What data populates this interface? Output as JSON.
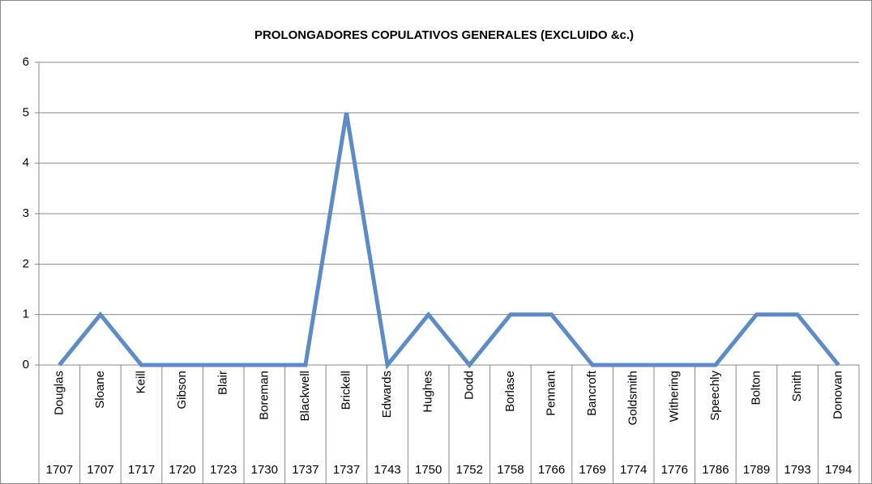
{
  "chart_data": {
    "type": "line",
    "title": "PROLONGADORES COPULATIVOS GENERALES (EXCLUIDO &c.)",
    "categories": [
      "Douglas",
      "Sloane",
      "Keill",
      "Gibson",
      "Blair",
      "Boreman",
      "Blackwell",
      "Brickell",
      "Edwards",
      "Hughes",
      "Dodd",
      "Borlase",
      "Pennant",
      "Bancroft",
      "Goldsmith",
      "Withering",
      "Speechly",
      "Bolton",
      "Smith",
      "Donovan"
    ],
    "category_years": [
      "1707",
      "1707",
      "1717",
      "1720",
      "1723",
      "1730",
      "1737",
      "1737",
      "1743",
      "1750",
      "1752",
      "1758",
      "1766",
      "1769",
      "1774",
      "1776",
      "1786",
      "1789",
      "1793",
      "1794"
    ],
    "values": [
      0,
      1,
      0,
      0,
      0,
      0,
      0,
      5,
      0,
      1,
      0,
      1,
      1,
      0,
      0,
      0,
      0,
      1,
      1,
      0
    ],
    "color": "#5b8cc8",
    "ylim": [
      0,
      6
    ],
    "yticks": [
      0,
      1,
      2,
      3,
      4,
      5,
      6
    ],
    "grid": true
  }
}
